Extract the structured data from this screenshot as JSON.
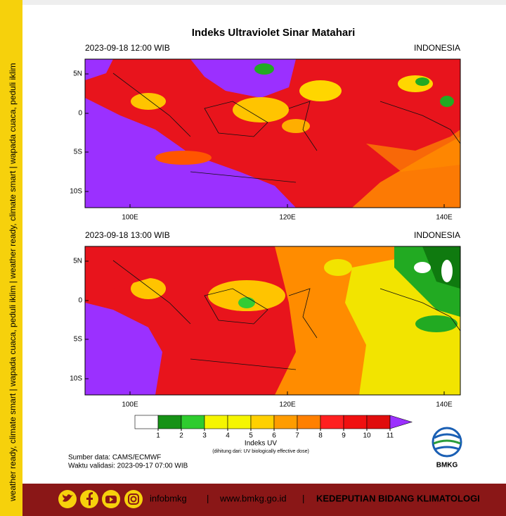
{
  "title": "Indeks Ultraviolet Sinar Matahari",
  "panels": [
    {
      "time": "2023-09-18  12:00 WIB",
      "region": "INDONESIA",
      "lat_labels": [
        "5N",
        "0",
        "5S",
        "10S"
      ],
      "lon_labels": [
        "100E",
        "120E",
        "140E"
      ]
    },
    {
      "time": "2023-09-18  13:00 WIB",
      "region": "INDONESIA",
      "lat_labels": [
        "5N",
        "0",
        "5S",
        "10S"
      ],
      "lon_labels": [
        "100E",
        "120E",
        "140E"
      ]
    }
  ],
  "colorbar": {
    "label": "Indeks UV",
    "note": "(dihitung dari: UV biologically effective dose)",
    "ticks": [
      1,
      2,
      3,
      4,
      5,
      6,
      7,
      8,
      9,
      10,
      11
    ]
  },
  "source": "Sumber data: CAMS/ECMWF",
  "validity": "Waktu validasi: 2023-09-17 07:00 WIB",
  "logo": "BMKG",
  "side_text": "weather ready, climate smart  |  wapada cuaca, peduli iklim  |  weather ready, climate smart  |  wapada cuaca, peduli iklim",
  "footer": {
    "handle": "infobmkg",
    "separator_1": "|",
    "website": "www.bmkg.go.id",
    "separator_2": "|",
    "unit": "KEDEPUTIAN BIDANG KLIMATOLOGI"
  }
}
